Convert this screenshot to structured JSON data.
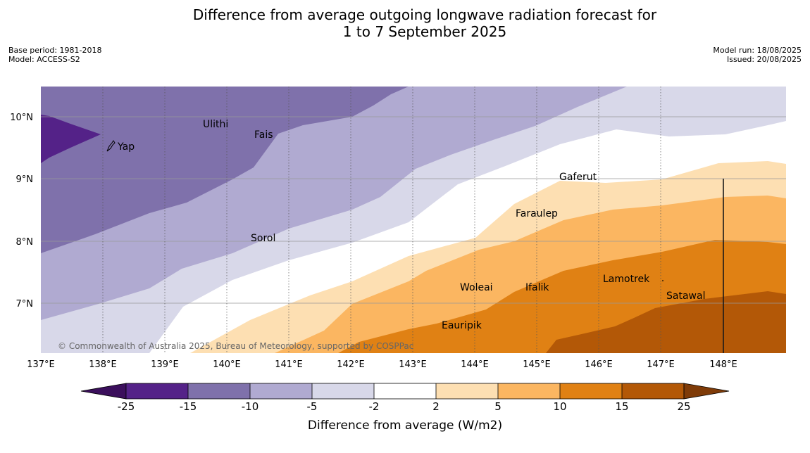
{
  "title_line1": "Difference from average outgoing longwave radiation forecast for",
  "title_line2": "1 to 7 September 2025",
  "base_period": "Base period: 1981-2018",
  "model": "Model: ACCESS-S2",
  "model_run": "Model run: 18/08/2025",
  "issued": "Issued: 20/08/2025",
  "copyright": "© Commonwealth of Australia 2025, Bureau of Meteorology, supported by COSPPac",
  "lon_ticks": [
    "137°E",
    "138°E",
    "139°E",
    "140°E",
    "141°E",
    "142°E",
    "143°E",
    "144°E",
    "145°E",
    "146°E",
    "147°E",
    "148°E"
  ],
  "lat_ticks": [
    "10°N",
    "9°N",
    "8°N",
    "7°N"
  ],
  "places": {
    "yap": "Yap",
    "ulithi": "Ulithi",
    "fais": "Fais",
    "sorol": "Sorol",
    "gaferut": "Gaferut",
    "faraulep": "Faraulep",
    "woleai": "Woleai",
    "ifalik": "Ifalik",
    "lamotrek": "Lamotrek",
    "satawal": "Satawal",
    "eauripik": "Eauripik"
  },
  "colorbar": {
    "label": "Difference from average (W/m2)",
    "ticks": [
      "-25",
      "-15",
      "-10",
      "-5",
      "-2",
      "2",
      "5",
      "10",
      "15",
      "25"
    ],
    "colors": {
      "below_-25": "#3b0f5c",
      "-25_-15": "#542288",
      "-15_-10": "#7f71ab",
      "-10_-5": "#b0aad1",
      "-5_-2": "#d8d8e9",
      "-2_2": "#ffffff",
      "2_5": "#fddfb2",
      "5_10": "#fbb661",
      "10_15": "#e08114",
      "15_25": "#b35807",
      "above_25": "#7f3b08"
    }
  }
}
